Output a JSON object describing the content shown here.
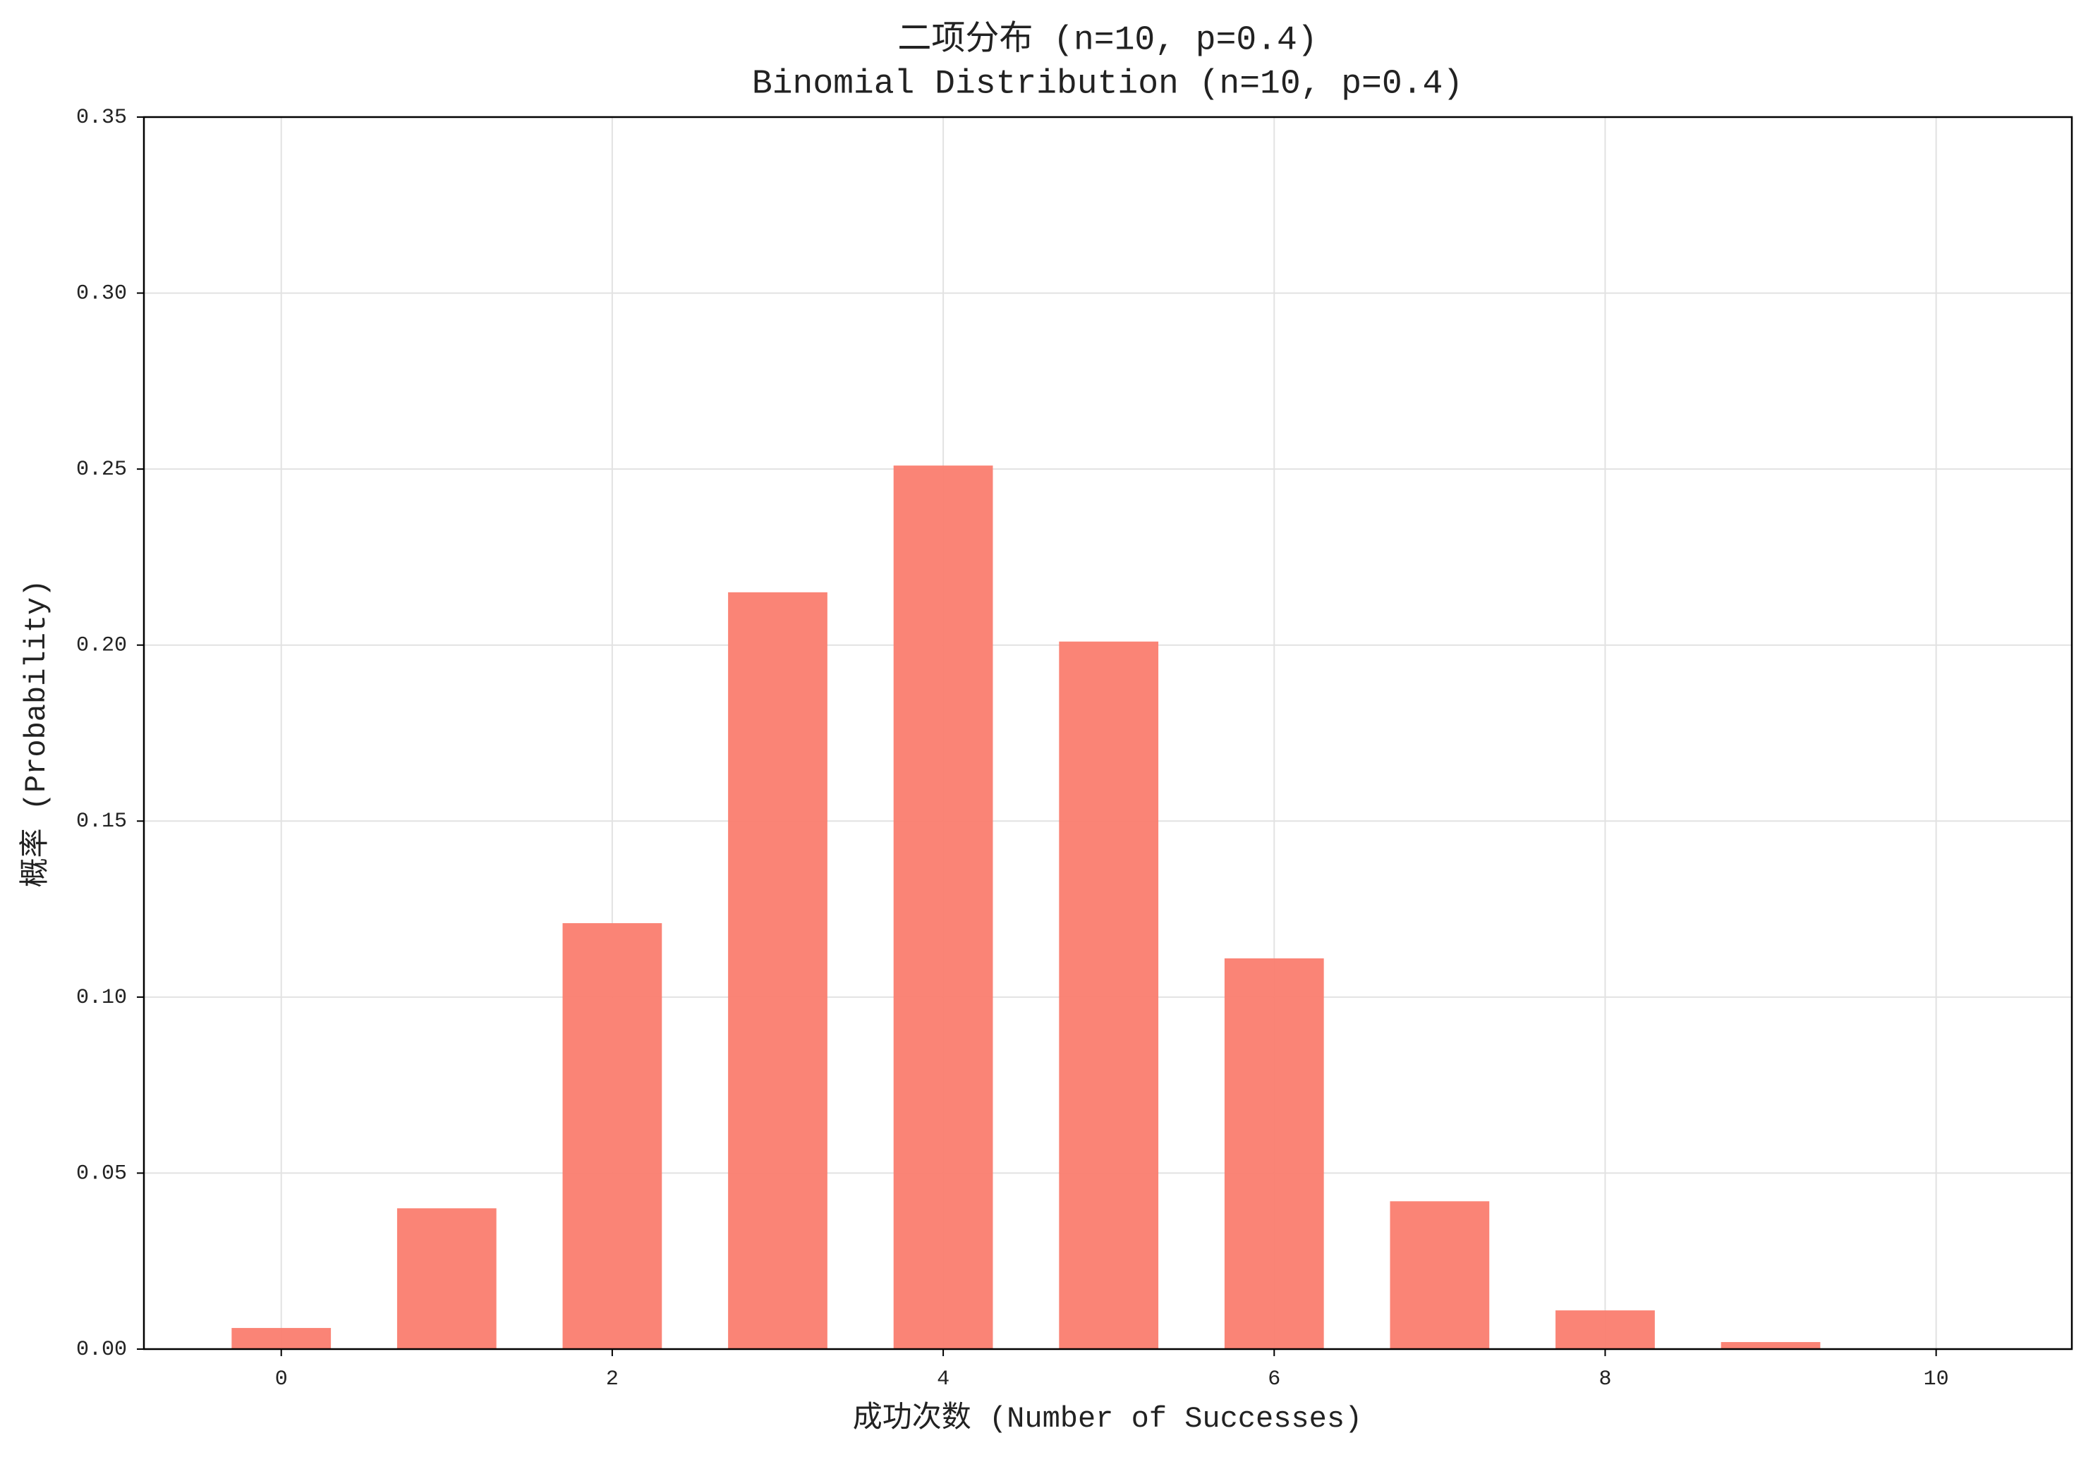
{
  "chart_data": {
    "type": "bar",
    "title": "二项分布 (n=10, p=0.4)",
    "subtitle": "Binomial Distribution (n=10, p=0.4)",
    "x_label": "成功次数 (Number of Successes)",
    "y_label": "概率 (Probability)",
    "x": [
      0,
      1,
      2,
      3,
      4,
      5,
      6,
      7,
      8,
      9,
      10
    ],
    "values": [
      0.006,
      0.04,
      0.121,
      0.215,
      0.251,
      0.201,
      0.111,
      0.042,
      0.011,
      0.002,
      0.0
    ],
    "color": "#fa8072",
    "bar_width": 0.6,
    "xlim": [
      -0.83,
      10.82
    ],
    "xticks": [
      0,
      2,
      4,
      6,
      8,
      10
    ],
    "ylim": [
      0,
      0.35
    ],
    "yticks": [
      {
        "value": 0,
        "label": "0.00"
      },
      {
        "value": 0.05,
        "label": "0.05"
      },
      {
        "value": 0.1,
        "label": "0.10"
      },
      {
        "value": 0.15,
        "label": "0.15"
      },
      {
        "value": 0.2,
        "label": "0.20"
      },
      {
        "value": 0.25,
        "label": "0.25"
      },
      {
        "value": 0.3,
        "label": "0.30"
      },
      {
        "value": 0.35,
        "label": "0.35"
      }
    ],
    "grid": true
  }
}
